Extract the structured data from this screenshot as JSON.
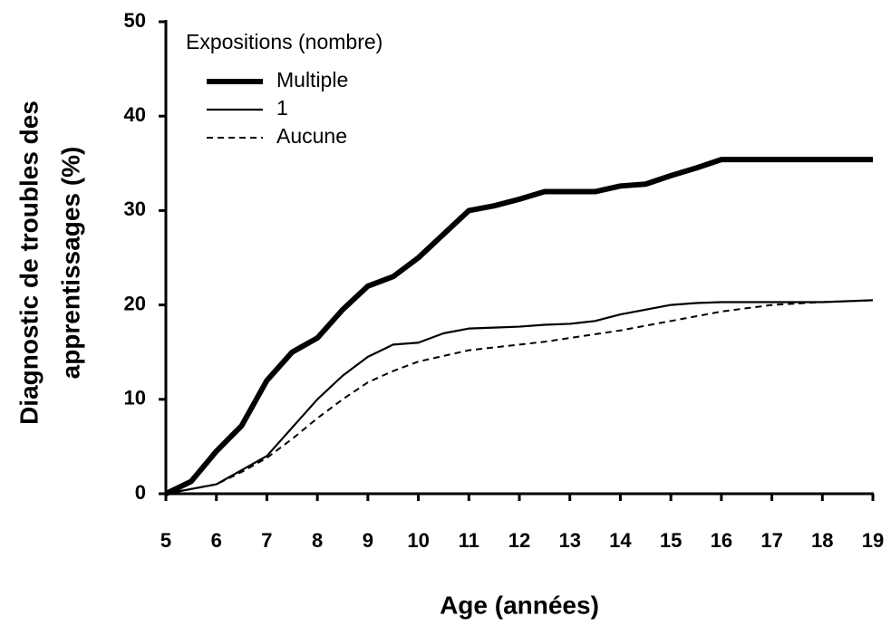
{
  "chart_data": {
    "type": "line",
    "xlabel": "Age (années)",
    "ylabel": [
      "Diagnostic de troubles des",
      "apprentissages (%)"
    ],
    "legend_title": "Expositions (nombre)",
    "legend": "upper left",
    "x": [
      5,
      5.5,
      6,
      6.5,
      7,
      7.5,
      8,
      8.5,
      9,
      9.5,
      10,
      10.5,
      11,
      11.5,
      12,
      12.5,
      13,
      13.5,
      14,
      14.5,
      15,
      15.5,
      16,
      17,
      18,
      19
    ],
    "series": [
      {
        "name": "Multiple",
        "color": "#000000",
        "line_width": 6,
        "dashed": false,
        "values": [
          0,
          1.3,
          4.5,
          7.2,
          12,
          15,
          16.5,
          19.5,
          22,
          23,
          25,
          27.5,
          30,
          30.5,
          31.2,
          32,
          32,
          32,
          32.6,
          32.8,
          33.7,
          34.5,
          35.4,
          35.4,
          35.4,
          35.4
        ]
      },
      {
        "name": "1",
        "color": "#000000",
        "line_width": 2.2,
        "dashed": false,
        "values": [
          0,
          0.5,
          1,
          2.5,
          4,
          7,
          10,
          12.5,
          14.5,
          15.8,
          16,
          17,
          17.5,
          17.6,
          17.7,
          17.9,
          18,
          18.3,
          19,
          19.5,
          20,
          20.2,
          20.3,
          20.3,
          20.3,
          20.5
        ]
      },
      {
        "name": "Aucune",
        "color": "#000000",
        "line_width": 2,
        "dashed": true,
        "values": [
          0,
          0.5,
          1,
          2.3,
          3.8,
          5.8,
          8,
          10,
          11.8,
          13,
          14,
          14.6,
          15.2,
          15.5,
          15.8,
          16.1,
          16.5,
          16.9,
          17.3,
          17.8,
          18.3,
          18.8,
          19.3,
          20,
          20.3,
          20.5
        ]
      }
    ],
    "xlim": [
      5,
      19
    ],
    "xticks": [
      5,
      6,
      7,
      8,
      9,
      10,
      11,
      12,
      13,
      14,
      15,
      16,
      17,
      18,
      19
    ],
    "ylim": [
      0,
      50
    ],
    "yticks": [
      0,
      10,
      20,
      30,
      40,
      50
    ],
    "grid": false
  }
}
